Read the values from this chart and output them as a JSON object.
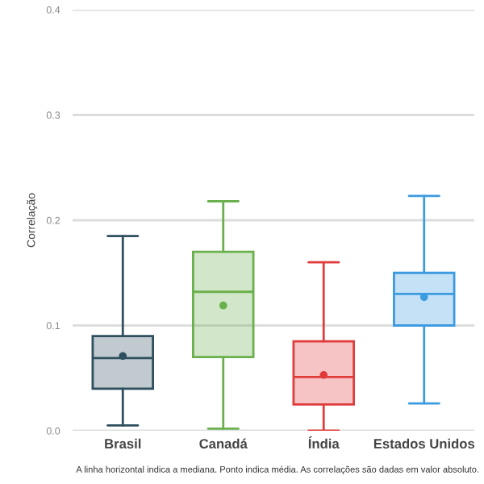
{
  "chart_data": {
    "type": "box",
    "ylabel": "Correlação",
    "categories": [
      "Brasil",
      "Canadá",
      "Índia",
      "Estados Unidos"
    ],
    "boxes": [
      {
        "low": 0.005,
        "q1": 0.04,
        "median": 0.069,
        "q3": 0.09,
        "high": 0.185,
        "mean": 0.071
      },
      {
        "low": 0.002,
        "q1": 0.07,
        "median": 0.132,
        "q3": 0.17,
        "high": 0.218,
        "mean": 0.119
      },
      {
        "low": 0.0,
        "q1": 0.025,
        "median": 0.051,
        "q3": 0.085,
        "high": 0.16,
        "mean": 0.053
      },
      {
        "low": 0.026,
        "q1": 0.1,
        "median": 0.13,
        "q3": 0.15,
        "high": 0.223,
        "mean": 0.127
      }
    ],
    "colors": [
      "#2f4f5f",
      "#6ab04c",
      "#e03c3c",
      "#3d9be0"
    ],
    "ylim": [
      0,
      0.4
    ],
    "yticks": [
      {
        "value": 0,
        "label": "0.0"
      },
      {
        "value": 0.1,
        "label": "0.1"
      },
      {
        "value": 0.2,
        "label": "0.2"
      },
      {
        "value": 0.3,
        "label": "0.3"
      },
      {
        "value": 0.4,
        "label": "0.4"
      }
    ],
    "grid": "y",
    "annotations": [
      "A linha horizontal indica a mediana. Ponto indica média. As correlações são dadas em valor absoluto."
    ]
  }
}
